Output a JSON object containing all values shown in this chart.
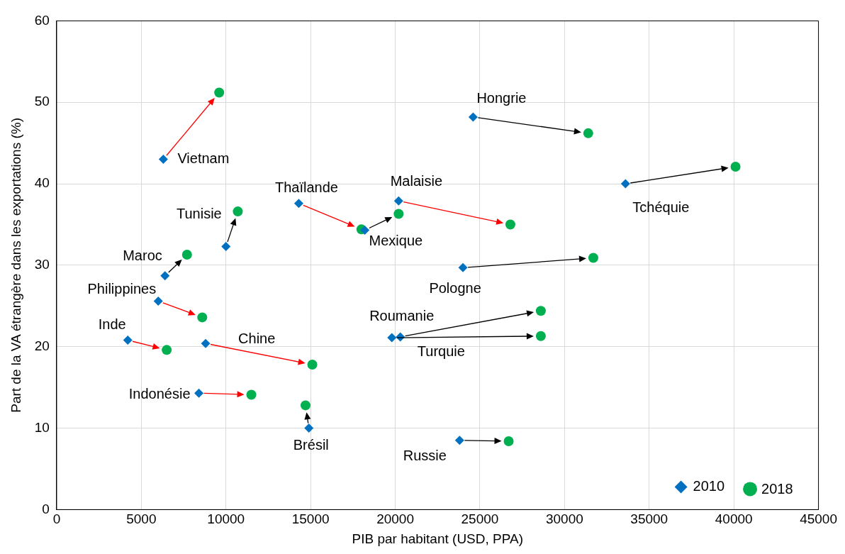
{
  "chart_data": {
    "type": "scatter",
    "xlabel": "PIB par habitant (USD, PPA)",
    "ylabel": "Part de la VA étrangère dans les exportations (%)",
    "xlim": [
      0,
      45000
    ],
    "xticks": [
      0,
      5000,
      10000,
      15000,
      20000,
      25000,
      30000,
      35000,
      40000,
      45000
    ],
    "ylim": [
      0,
      60
    ],
    "yticks": [
      0,
      10,
      20,
      30,
      40,
      50,
      60
    ],
    "grid": true,
    "legend": "bottom right",
    "series": [
      {
        "name": "2010",
        "color": "#0070c0",
        "marker": "diamond",
        "x": [
          6300,
          24600,
          33600,
          14300,
          20200,
          18200,
          10000,
          6400,
          6000,
          4200,
          8800,
          8400,
          14900,
          20300,
          19800,
          24000,
          23800
        ],
        "values": [
          43.0,
          48.2,
          40.0,
          37.6,
          37.9,
          34.3,
          32.3,
          28.7,
          25.6,
          20.8,
          20.4,
          14.3,
          10.0,
          21.2,
          21.1,
          29.7,
          8.5
        ]
      },
      {
        "name": "2018",
        "color": "#00b050",
        "marker": "circle",
        "x": [
          9600,
          31400,
          40100,
          18000,
          26800,
          20200,
          10700,
          7700,
          8600,
          6500,
          15100,
          11500,
          14700,
          28600,
          28600,
          31700,
          26700
        ],
        "values": [
          51.2,
          46.2,
          42.1,
          34.4,
          35.0,
          36.3,
          36.6,
          31.3,
          23.6,
          19.6,
          17.8,
          14.1,
          12.8,
          24.4,
          21.3,
          30.9,
          8.4
        ]
      }
    ],
    "annotations": [
      {
        "text": "Vietnam",
        "x": 6300,
        "y": 43.0
      },
      {
        "text": "Hongrie",
        "x": 24600,
        "y": 48.2
      },
      {
        "text": "Tchéquie",
        "x": 33600,
        "y": 40.0
      },
      {
        "text": "Thaïlande",
        "x": 14300,
        "y": 37.6
      },
      {
        "text": "Malaisie",
        "x": 20200,
        "y": 37.9
      },
      {
        "text": "Mexique",
        "x": 18200,
        "y": 34.3
      },
      {
        "text": "Tunisie",
        "x": 10000,
        "y": 32.3
      },
      {
        "text": "Maroc",
        "x": 6400,
        "y": 28.7
      },
      {
        "text": "Philippines",
        "x": 6000,
        "y": 25.6
      },
      {
        "text": "Inde",
        "x": 4200,
        "y": 20.8
      },
      {
        "text": "Chine",
        "x": 8800,
        "y": 20.4
      },
      {
        "text": "Indonésie",
        "x": 8400,
        "y": 14.3
      },
      {
        "text": "Brésil",
        "x": 14900,
        "y": 10.0
      },
      {
        "text": "Roumanie",
        "x": 20300,
        "y": 21.2
      },
      {
        "text": "Turquie",
        "x": 19800,
        "y": 21.1
      },
      {
        "text": "Pologne",
        "x": 24000,
        "y": 29.7
      },
      {
        "text": "Russie",
        "x": 23800,
        "y": 8.5
      }
    ]
  }
}
